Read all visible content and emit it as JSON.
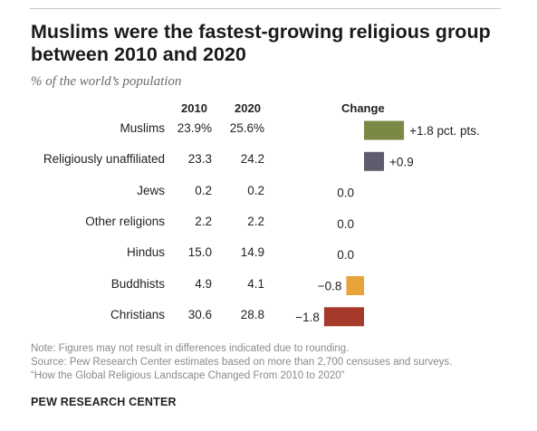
{
  "title": "Muslims were the fastest-growing religious group between 2010 and 2020",
  "subtitle": "% of the world’s population",
  "headers": {
    "year1": "2010",
    "year2": "2020",
    "change": "Change"
  },
  "chart_data": {
    "type": "bar",
    "title": "Muslims were the fastest-growing religious group between 2010 and 2020",
    "subtitle": "% of the world’s population",
    "categories": [
      "Muslims",
      "Religiously unaffiliated",
      "Jews",
      "Other religions",
      "Hindus",
      "Buddhists",
      "Christians"
    ],
    "values_2010": [
      "23.9%",
      "23.3",
      "0.2",
      "2.2",
      "15.0",
      "4.9",
      "30.6"
    ],
    "values_2020": [
      "25.6%",
      "24.2",
      "0.2",
      "2.2",
      "14.9",
      "4.1",
      "28.8"
    ],
    "values": [
      1.8,
      0.9,
      0.0,
      0.0,
      0.0,
      -0.8,
      -1.8
    ],
    "change_labels": [
      "+1.8 pct. pts.",
      "+0.9",
      "0.0",
      "0.0",
      "0.0",
      "−0.8",
      "−1.8"
    ],
    "colors": [
      "#7a8a45",
      "#5d5d6e",
      "#999999",
      "#999999",
      "#999999",
      "#e8a33a",
      "#a63a2a"
    ],
    "rows": [
      {
        "label": "Muslims",
        "y2010": "23.9%",
        "y2020": "25.6%",
        "change_label": "+1.8 pct. pts."
      },
      {
        "label": "Religiously unaffiliated",
        "y2010": "23.3",
        "y2020": "24.2",
        "change_label": "+0.9"
      },
      {
        "label": "Jews",
        "y2010": "0.2",
        "y2020": "0.2",
        "change_label": "0.0"
      },
      {
        "label": "Other religions",
        "y2010": "2.2",
        "y2020": "2.2",
        "change_label": "0.0"
      },
      {
        "label": "Hindus",
        "y2010": "15.0",
        "y2020": "14.9",
        "change_label": "0.0"
      },
      {
        "label": "Buddhists",
        "y2010": "4.9",
        "y2020": "4.1",
        "change_label": "−0.8"
      },
      {
        "label": "Christians",
        "y2010": "30.6",
        "y2020": "28.8",
        "change_label": "−1.8"
      }
    ]
  },
  "notes": {
    "note": "Note: Figures may not result in differences indicated due to rounding.",
    "source": "Source: Pew Research Center estimates based on more than 2,700 censuses and surveys.",
    "report": "“How the Global Religious Landscape Changed From 2010 to 2020”"
  },
  "org": "PEW RESEARCH CENTER"
}
